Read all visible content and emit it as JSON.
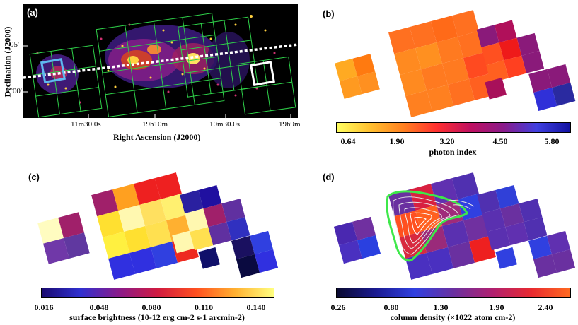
{
  "panels": {
    "a": {
      "label": "(a)",
      "ylabel": "Declination (J2000)",
      "xlabel": "Right Ascension (J2000)",
      "yticks": [
        "05'",
        "5°00'"
      ],
      "xticks": [
        "11m30.0s",
        "19h10m",
        "10m30.0s",
        "19h9m"
      ]
    },
    "b": {
      "label": "(b)",
      "colorbar_title": "photon index",
      "colorbar_ticks": [
        "0.64",
        "1.90",
        "3.20",
        "4.50",
        "5.80"
      ]
    },
    "c": {
      "label": "(c)",
      "colorbar_title": "surface brightness (10-12 erg cm-2 s-1 arcmin-2)",
      "colorbar_ticks": [
        "0.016",
        "0.048",
        "0.080",
        "0.110",
        "0.140"
      ]
    },
    "d": {
      "label": "(d)",
      "colorbar_title": "column density (×1022 atom cm-2)",
      "colorbar_ticks": [
        "0.26",
        "0.80",
        "1.30",
        "1.90",
        "2.40"
      ]
    }
  },
  "colors": {
    "image_bg": "#000000",
    "grid_green": "#2fd24a",
    "box_cyan": "#5fb8f0",
    "box_white": "#ffffff",
    "contour_green": "#3ee84a"
  }
}
